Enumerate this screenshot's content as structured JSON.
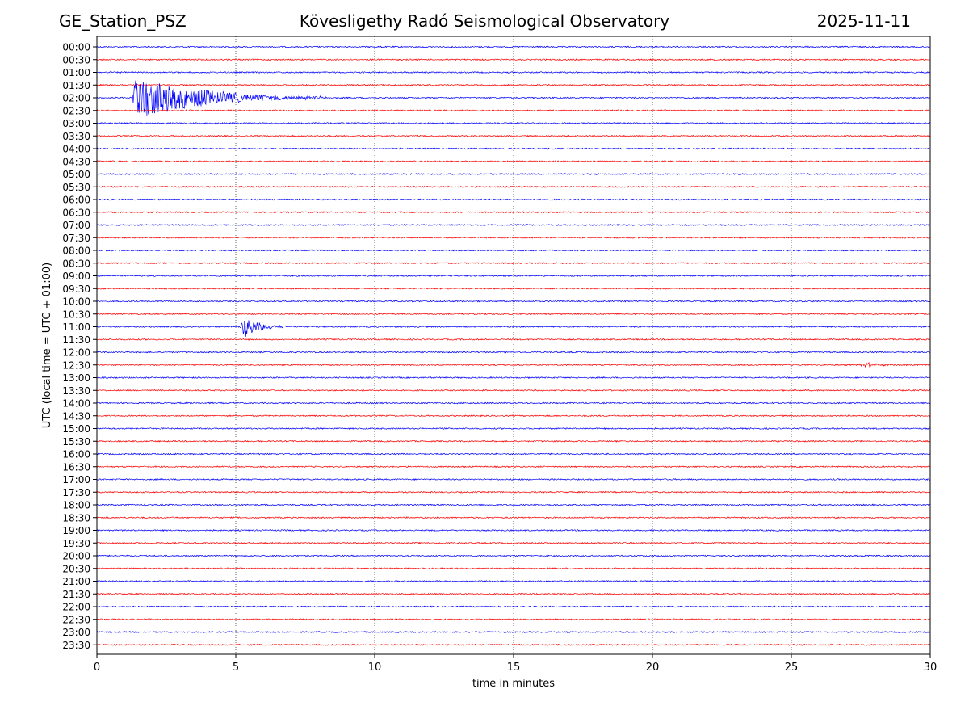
{
  "header": {
    "station": "GE_Station_PSZ",
    "observatory": "Kövesligethy Radó Seismological Observatory",
    "date": "2025-11-11"
  },
  "chart_data": {
    "type": "line",
    "subtype": "helicorder",
    "title": "Kövesligethy Radó Seismological Observatory",
    "station": "GE_Station_PSZ",
    "date": "2025-11-11",
    "xlabel": "time in minutes",
    "ylabel": "UTC (local time = UTC + 01:00)",
    "xlim": [
      0,
      30
    ],
    "x_ticks": [
      0,
      5,
      10,
      15,
      20,
      25,
      30
    ],
    "grid": "vertical dotted lines every 5 minutes",
    "row_colors": [
      "#0000ff",
      "#ff0000"
    ],
    "rows": [
      "00:00",
      "00:30",
      "01:00",
      "01:30",
      "02:00",
      "02:30",
      "03:00",
      "03:30",
      "04:00",
      "04:30",
      "05:00",
      "05:30",
      "06:00",
      "06:30",
      "07:00",
      "07:30",
      "08:00",
      "08:30",
      "09:00",
      "09:30",
      "10:00",
      "10:30",
      "11:00",
      "11:30",
      "12:00",
      "12:30",
      "13:00",
      "13:30",
      "14:00",
      "14:30",
      "15:00",
      "15:30",
      "16:00",
      "16:30",
      "17:00",
      "17:30",
      "18:00",
      "18:30",
      "19:00",
      "19:30",
      "20:00",
      "20:30",
      "21:00",
      "21:30",
      "22:00",
      "22:30",
      "23:00",
      "23:30"
    ],
    "events": [
      {
        "row": "02:00",
        "start_min": 1.25,
        "end_min": 8.3,
        "peak_min": 1.45,
        "peak_amplitude_rows": 1.9,
        "description": "large earthquake with long coda"
      },
      {
        "row": "11:00",
        "start_min": 5.15,
        "end_min": 7.0,
        "peak_min": 5.3,
        "peak_amplitude_rows": 0.9,
        "description": "local event"
      },
      {
        "row": "12:30",
        "start_min": 27.3,
        "end_min": 28.6,
        "peak_min": 27.8,
        "peak_amplitude_rows": 0.25,
        "description": "small disturbance"
      }
    ]
  }
}
